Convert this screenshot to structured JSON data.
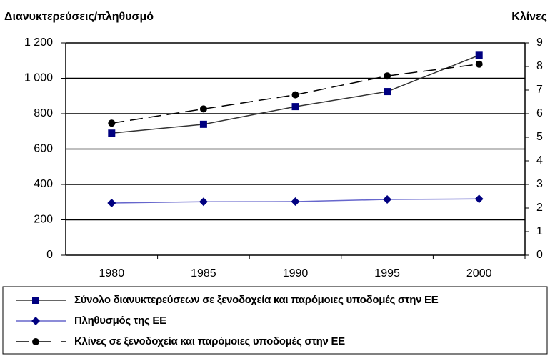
{
  "chart_data": {
    "type": "line",
    "y_title": "Διανυκτερεύσεις/πληθυσμό",
    "y2_title": "Κλίνες",
    "categories": [
      "1980",
      "1985",
      "1990",
      "1995",
      "2000"
    ],
    "ylim": [
      0,
      1200
    ],
    "yticks": [
      0,
      200,
      400,
      600,
      800,
      {
        "value": 1000,
        "label": "1 000"
      },
      {
        "value": 1200,
        "label": "1 200"
      }
    ],
    "y2lim": [
      0,
      9
    ],
    "y2ticks": [
      0,
      1,
      2,
      3,
      4,
      5,
      6,
      7,
      8,
      9
    ],
    "grid": true,
    "legend": "bottom",
    "series": [
      {
        "name": "Σύνολο διανυκτερεύσεων σε ξενοδοχεία και παρόμοιες υποδομές στην ΕΕ",
        "color": "#000080",
        "line_color": "#333333",
        "marker": "square",
        "dash": false,
        "values": [
          690,
          740,
          840,
          925,
          1130
        ]
      },
      {
        "name": "Πληθυσμός της ΕΕ",
        "color": "#000080",
        "line_color": "#6666cc",
        "marker": "diamond",
        "dash": false,
        "values": [
          295,
          302,
          303,
          315,
          318
        ]
      },
      {
        "name": "Κλίνες σε ξενοδοχεία και παρόμοιες υποδομές στην ΕΕ",
        "color": "#000000",
        "line_color": "#000000",
        "marker": "circle",
        "dash": true,
        "axis": "y2",
        "values": [
          5.6,
          6.2,
          6.8,
          7.6,
          8.1
        ]
      }
    ]
  }
}
